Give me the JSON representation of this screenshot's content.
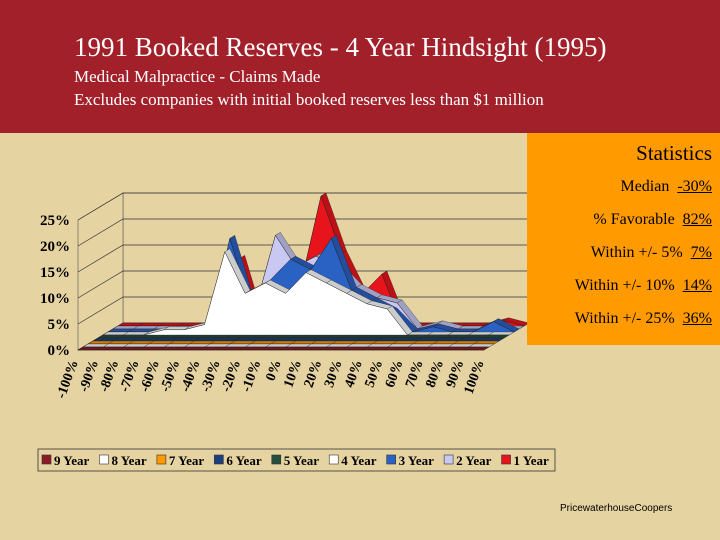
{
  "header": {
    "title": "1991 Booked Reserves - 4 Year Hindsight (1995)",
    "subtitle": "Medical Malpractice - Claims Made",
    "note": "Excludes companies with initial booked reserves less than $1 million"
  },
  "statistics": {
    "title": "Statistics",
    "rows": [
      {
        "label": "Median",
        "value": "-30%"
      },
      {
        "label": "% Favorable",
        "value": "82%"
      },
      {
        "label": "Within +/- 5%",
        "value": "7%"
      },
      {
        "label": "Within +/- 10%",
        "value": "14%"
      },
      {
        "label": "Within +/- 25%",
        "value": "36%"
      }
    ]
  },
  "footer": "PricewaterhouseCoopers",
  "chart_data": {
    "type": "area3d",
    "categories": [
      "-100%",
      "-90%",
      "-80%",
      "-70%",
      "-60%",
      "-50%",
      "-40%",
      "-30%",
      "-20%",
      "-10%",
      "0%",
      "10%",
      "20%",
      "30%",
      "40%",
      "50%",
      "60%",
      "70%",
      "80%",
      "90%",
      "100%"
    ],
    "ylim": [
      0,
      25
    ],
    "yticks": [
      {
        "value": 0,
        "label": "0%"
      },
      {
        "value": 5,
        "label": "5%"
      },
      {
        "value": 10,
        "label": "10%"
      },
      {
        "value": 15,
        "label": "15%"
      },
      {
        "value": 20,
        "label": "20%"
      },
      {
        "value": 25,
        "label": "25%"
      }
    ],
    "grid": true,
    "series": [
      {
        "name": "9 Year",
        "color": "#8b1c24",
        "values": [
          0,
          0,
          0,
          0,
          0,
          0,
          0,
          0,
          0,
          0,
          0,
          0,
          0,
          0,
          0,
          0,
          0,
          0,
          0,
          0,
          0
        ]
      },
      {
        "name": "8 Year",
        "color": "#ffffff",
        "values": [
          0,
          0,
          0,
          0,
          0,
          0,
          0,
          0,
          0,
          0,
          0,
          0,
          0,
          0,
          0,
          0,
          0,
          0,
          0,
          0,
          0
        ]
      },
      {
        "name": "7 Year",
        "color": "#ff9a00",
        "values": [
          0,
          0,
          0,
          0,
          0,
          0,
          0,
          0,
          0,
          0,
          0,
          0,
          0,
          0,
          0,
          0,
          0,
          0,
          0,
          0,
          0
        ]
      },
      {
        "name": "6 Year",
        "color": "#1c3f80",
        "values": [
          0,
          0,
          0,
          0,
          0,
          0,
          0,
          0,
          0,
          0,
          0,
          0,
          0,
          0,
          0,
          0,
          0,
          0,
          0,
          0,
          0
        ]
      },
      {
        "name": "5 Year",
        "color": "#274e3c",
        "values": [
          0,
          0,
          0,
          0,
          0,
          0,
          0,
          0,
          0,
          0,
          0,
          0,
          0,
          0,
          0,
          0,
          0,
          0,
          0,
          0,
          0
        ]
      },
      {
        "name": "4 Year",
        "color": "#ffffff",
        "values": [
          0,
          0,
          0,
          1,
          1,
          2,
          16,
          8,
          10,
          8,
          12,
          10,
          8,
          6,
          5,
          0,
          0,
          0,
          0,
          0,
          0
        ]
      },
      {
        "name": "3 Year",
        "color": "#2a62c4",
        "values": [
          0,
          0,
          0,
          0,
          0,
          0,
          18,
          5,
          10,
          14,
          12,
          18,
          8,
          6,
          4,
          0,
          1,
          0,
          0,
          2,
          0
        ]
      },
      {
        "name": "2 Year",
        "color": "#c8c8f2",
        "values": [
          0,
          0,
          0,
          0,
          0,
          0,
          0,
          4,
          18,
          12,
          14,
          12,
          8,
          6,
          5,
          0,
          1,
          0,
          0,
          0,
          0
        ]
      },
      {
        "name": "1 Year",
        "color": "#e8141c",
        "values": [
          0,
          0,
          0,
          0,
          0,
          0,
          13,
          0,
          4,
          8,
          25,
          14,
          6,
          10,
          0,
          0,
          0,
          0,
          0,
          1,
          0
        ]
      }
    ]
  }
}
